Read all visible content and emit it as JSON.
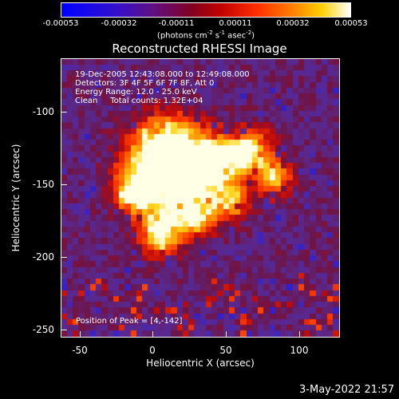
{
  "colorbar": {
    "tick_labels": [
      "-0.00053",
      "-0.00032",
      "-0.00011",
      "0.00011",
      "0.00032",
      "0.00053"
    ],
    "units": "(photons cm",
    "units_exp1": "-2",
    "units_mid": " s",
    "units_exp2": "-1",
    "units_mid2": " asec",
    "units_exp3": "-2",
    "units_end": ")"
  },
  "title": "Reconstructed RHESSI Image",
  "annotations": {
    "line1": "19-Dec-2005 12:43:08.000 to 12:49:08.000",
    "line2": "Detectors: 3F 4F 5F 6F 7F 8F, Att 0",
    "line3": "Energy Range: 12.0 - 25.0 keV",
    "line4": "Clean     Total counts: 1.32E+04",
    "peak": "Position of Peak = [4,-142]"
  },
  "axes": {
    "x_label": "Heliocentric X (arcsec)",
    "y_label": "Heliocentric Y (arcsec)",
    "x_ticks": [
      "-50",
      "0",
      "50",
      "100"
    ],
    "y_ticks": [
      "-100",
      "-150",
      "-200",
      "-250"
    ]
  },
  "footer": "3-May-2022 21:57",
  "colors": {
    "background": "#000000",
    "text": "#ffffff"
  }
}
